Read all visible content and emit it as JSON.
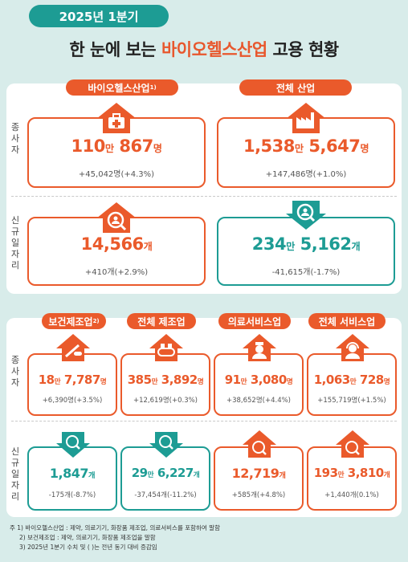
{
  "header": {
    "badge": "2025년 1분기",
    "title_prefix": "한 눈에 보는 ",
    "title_highlight": "바이오헬스산업",
    "title_suffix": " 고용 현황"
  },
  "row_labels": {
    "employees": "종사자",
    "new_jobs": "신규일자리"
  },
  "top": {
    "bio": {
      "label": "바이오헬스산업",
      "sup": "1)",
      "emp_num1": "110",
      "emp_unit1": "만",
      "emp_num2": " 867",
      "emp_unit2": "명",
      "emp_change": "+45,042명(+4.3%)",
      "new_num": "14,566",
      "new_unit": "개",
      "new_change": "+410개(+2.9%)"
    },
    "all": {
      "label": "전체 산업",
      "emp_num1": "1,538",
      "emp_unit1": "만",
      "emp_num2": " 5,647",
      "emp_unit2": "명",
      "emp_change": "+147,486명(+1.0%)",
      "new_num1": "234",
      "new_unit1": "만",
      "new_num2": " 5,162",
      "new_unit2": "개",
      "new_change": "-41,615개(-1.7%)"
    }
  },
  "bottom": [
    {
      "label": "보건제조업",
      "sup": "2)",
      "emp_num1": "18",
      "emp_unit1": "만",
      "emp_num2": " 7,787",
      "emp_unit2": "명",
      "emp_change": "+6,390명(+3.5%)",
      "new_num1": "",
      "new_unit1": "",
      "new_num2": "1,847",
      "new_unit2": "개",
      "new_change": "-175개(-8.7%)"
    },
    {
      "label": "전체 제조업",
      "sup": "",
      "emp_num1": "385",
      "emp_unit1": "만",
      "emp_num2": " 3,892",
      "emp_unit2": "명",
      "emp_change": "+12,619명(+0.3%)",
      "new_num1": "29",
      "new_unit1": "만",
      "new_num2": " 6,227",
      "new_unit2": "개",
      "new_change": "-37,454개(-11.2%)"
    },
    {
      "label": "의료서비스업",
      "sup": "",
      "emp_num1": "91",
      "emp_unit1": "만",
      "emp_num2": " 3,080",
      "emp_unit2": "명",
      "emp_change": "+38,652명(+4.4%)",
      "new_num1": "",
      "new_unit1": "",
      "new_num2": "12,719",
      "new_unit2": "개",
      "new_change": "+585개(+4.8%)"
    },
    {
      "label": "전체 서비스업",
      "sup": "",
      "emp_num1": "1,063",
      "emp_unit1": "만",
      "emp_num2": " 728",
      "emp_unit2": "명",
      "emp_change": "+155,719명(+1.5%)",
      "new_num1": "193",
      "new_unit1": "만",
      "new_num2": " 3,810",
      "new_unit2": "개",
      "new_change": "+1,440개(0.1%)"
    }
  ],
  "notes": [
    "주 1) 바이오헬스산업 : 제약, 의료기기, 화장품 제조업, 의료서비스를 포함하여 말함",
    "2) 보건제조업 : 제약, 의료기기, 화장품 제조업을 말함",
    "3) 2025년 1분기 수치 및 ( )는 전년 동기 대비 증감임"
  ],
  "colors": {
    "orange": "#ea5a2b",
    "teal": "#1d9c94",
    "bg": "#d8ecea"
  }
}
